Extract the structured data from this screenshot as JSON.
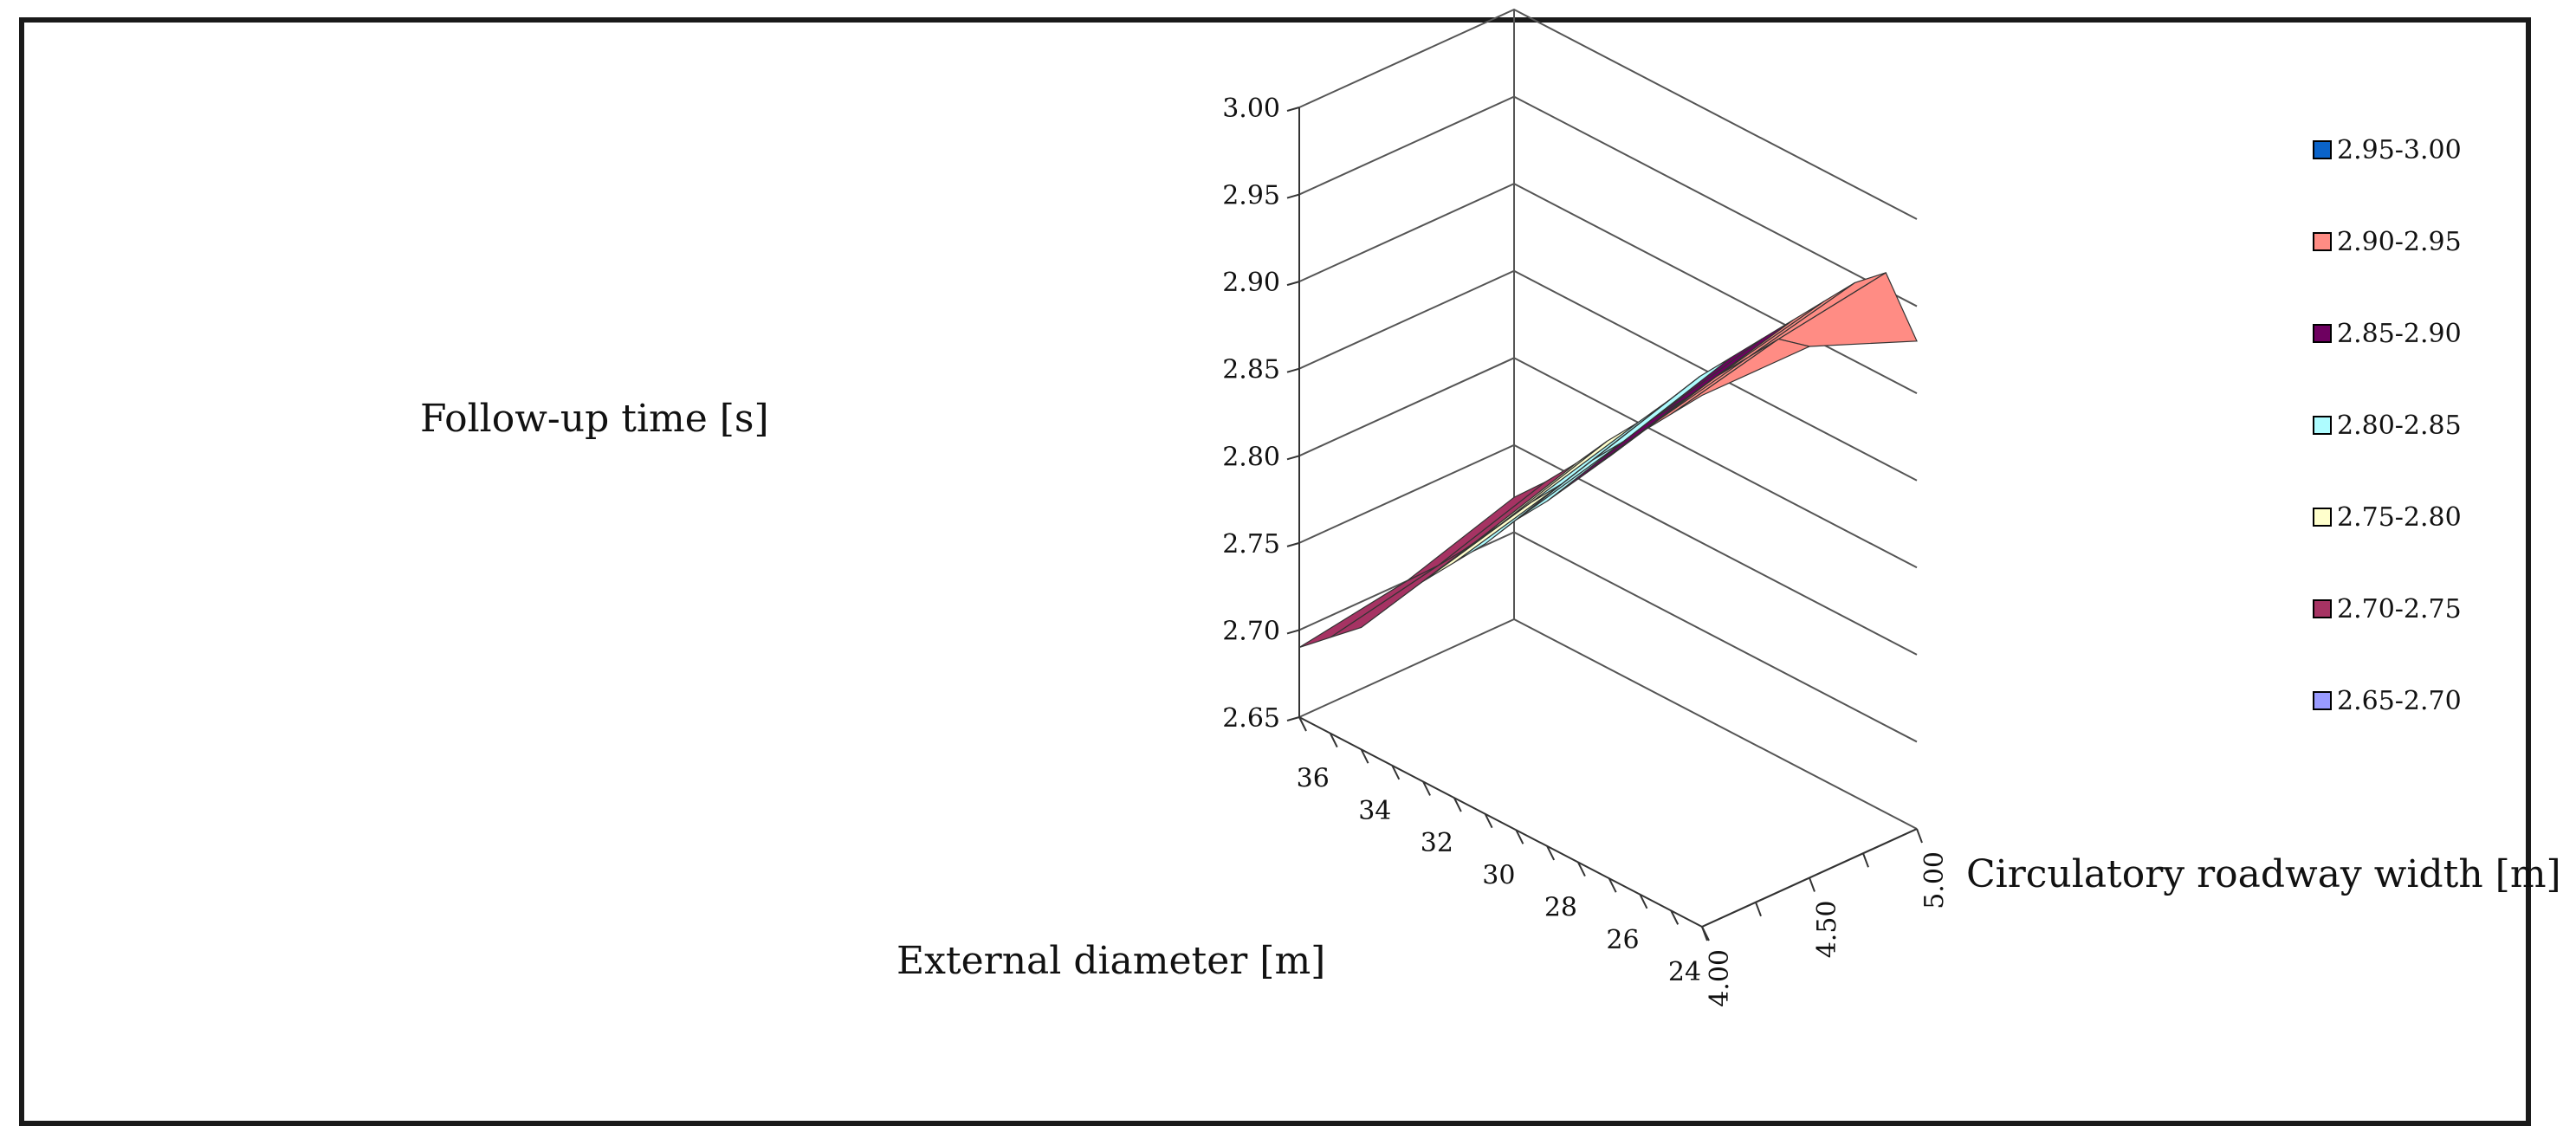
{
  "chart_data": {
    "type": "surface3d",
    "title": "",
    "zlabel": "Follow-up time [s]",
    "xlabel": "External diameter [m]",
    "ylabel": "Circulatory roadway width [m]",
    "z_ticks": [
      "2.65",
      "2.70",
      "2.75",
      "2.80",
      "2.85",
      "2.90",
      "2.95",
      "3.00"
    ],
    "zlim": [
      2.65,
      3.0
    ],
    "x_ticks": [
      "36",
      "34",
      "32",
      "30",
      "28",
      "26",
      "24"
    ],
    "xlim": [
      37,
      24
    ],
    "y_ticks": [
      "4.00",
      "4.50",
      "5.00"
    ],
    "ylim": [
      4.0,
      5.0
    ],
    "external_diameter": [
      37,
      36,
      35,
      34,
      33,
      32,
      31,
      30,
      29,
      28,
      27,
      26,
      25,
      24
    ],
    "circulatory_width": [
      4.0,
      4.5,
      5.0
    ],
    "follow_up_time": [
      [
        2.69,
        2.7,
        2.72
      ],
      [
        2.705,
        2.718,
        2.738
      ],
      [
        2.72,
        2.738,
        2.758
      ],
      [
        2.745,
        2.76,
        2.78
      ],
      [
        2.765,
        2.782,
        2.8
      ],
      [
        2.785,
        2.802,
        2.822
      ],
      [
        2.805,
        2.825,
        2.845
      ],
      [
        2.828,
        2.845,
        2.865
      ],
      [
        2.848,
        2.868,
        2.885
      ],
      [
        2.87,
        2.888,
        2.905
      ],
      [
        2.892,
        2.91,
        2.925
      ],
      [
        2.915,
        2.93,
        2.945
      ],
      [
        2.935,
        2.95,
        2.96
      ],
      [
        2.955,
        2.955,
        2.93
      ]
    ],
    "legend": [
      {
        "label": "2.95-3.00",
        "color": "#0a63c9"
      },
      {
        "label": "2.90-2.95",
        "color": "#ff8c84"
      },
      {
        "label": "2.85-2.90",
        "color": "#6e0060"
      },
      {
        "label": "2.80-2.85",
        "color": "#aefcff"
      },
      {
        "label": "2.75-2.80",
        "color": "#ffffcc"
      },
      {
        "label": "2.70-2.75",
        "color": "#a63363"
      },
      {
        "label": "2.65-2.70",
        "color": "#9a9bff"
      }
    ]
  }
}
